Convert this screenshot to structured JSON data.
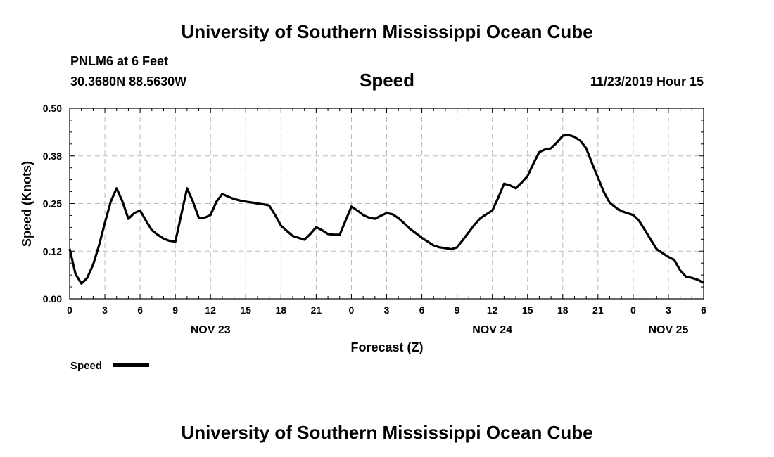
{
  "header": {
    "title": "University of Southern Mississippi Ocean Cube",
    "station": "PNLM6 at 6 Feet",
    "coords": "30.3680N 88.5630W",
    "datetime": "11/23/2019 Hour 15"
  },
  "footer": {
    "title": "University of Southern Mississippi Ocean Cube"
  },
  "legend": {
    "label": "Speed"
  },
  "chart_data": {
    "type": "line",
    "title": "Speed",
    "xlabel": "Forecast (Z)",
    "ylabel": "Speed (Knots)",
    "xlim": [
      0,
      54
    ],
    "ylim": [
      0,
      0.5
    ],
    "grid": true,
    "x_tick_labels": [
      "0",
      "3",
      "6",
      "9",
      "12",
      "15",
      "18",
      "21",
      "0",
      "3",
      "6",
      "9",
      "12",
      "15",
      "18",
      "21",
      "0",
      "3",
      "6"
    ],
    "y_tick_labels": [
      "0.00",
      "0.12",
      "0.25",
      "0.38",
      "0.50"
    ],
    "y_tick_values": [
      0,
      0.125,
      0.25,
      0.375,
      0.5
    ],
    "day_labels": [
      {
        "label": "NOV 23",
        "x": 12
      },
      {
        "label": "NOV 24",
        "x": 36
      },
      {
        "label": "NOV 25",
        "x": 51
      }
    ],
    "series": [
      {
        "name": "Speed",
        "color": "#000000",
        "x": [
          0,
          0.5,
          1,
          1.5,
          2,
          2.5,
          3,
          3.5,
          4,
          4.5,
          5,
          5.5,
          6,
          6.5,
          7,
          7.5,
          8,
          8.5,
          9,
          9.5,
          10,
          10.5,
          11,
          11.5,
          12,
          12.5,
          13,
          13.5,
          14,
          14.5,
          15,
          15.5,
          16,
          16.5,
          17,
          17.5,
          18,
          18.5,
          19,
          19.5,
          20,
          20.5,
          21,
          21.5,
          22,
          22.5,
          23,
          23.5,
          24,
          24.5,
          25,
          25.5,
          26,
          26.5,
          27,
          27.5,
          28,
          28.5,
          29,
          29.5,
          30,
          30.5,
          31,
          31.5,
          32,
          32.5,
          33,
          33.5,
          34,
          34.5,
          35,
          35.5,
          36,
          36.5,
          37,
          37.5,
          38,
          38.5,
          39,
          39.5,
          40,
          40.5,
          41,
          41.5,
          42,
          42.5,
          43,
          43.5,
          44,
          44.5,
          45,
          45.5,
          46,
          46.5,
          47,
          47.5,
          48,
          48.5,
          49,
          49.5,
          50,
          50.5,
          51,
          51.5,
          52,
          52.5,
          53,
          53.5,
          54
        ],
        "values": [
          0.131,
          0.065,
          0.04,
          0.055,
          0.09,
          0.14,
          0.2,
          0.255,
          0.29,
          0.255,
          0.21,
          0.225,
          0.232,
          0.205,
          0.18,
          0.168,
          0.158,
          0.152,
          0.15,
          0.22,
          0.29,
          0.255,
          0.213,
          0.213,
          0.22,
          0.255,
          0.275,
          0.268,
          0.262,
          0.258,
          0.255,
          0.253,
          0.25,
          0.248,
          0.245,
          0.22,
          0.192,
          0.178,
          0.165,
          0.16,
          0.155,
          0.17,
          0.188,
          0.18,
          0.17,
          0.168,
          0.168,
          0.205,
          0.242,
          0.232,
          0.22,
          0.213,
          0.21,
          0.218,
          0.225,
          0.222,
          0.212,
          0.198,
          0.183,
          0.172,
          0.16,
          0.15,
          0.14,
          0.135,
          0.133,
          0.13,
          0.135,
          0.155,
          0.175,
          0.195,
          0.212,
          0.222,
          0.232,
          0.265,
          0.302,
          0.298,
          0.29,
          0.305,
          0.322,
          0.355,
          0.385,
          0.392,
          0.395,
          0.41,
          0.428,
          0.43,
          0.425,
          0.415,
          0.395,
          0.355,
          0.318,
          0.28,
          0.252,
          0.24,
          0.23,
          0.225,
          0.22,
          0.205,
          0.18,
          0.155,
          0.13,
          0.12,
          0.11,
          0.102,
          0.075,
          0.058,
          0.055,
          0.05,
          0.042
        ]
      }
    ]
  }
}
